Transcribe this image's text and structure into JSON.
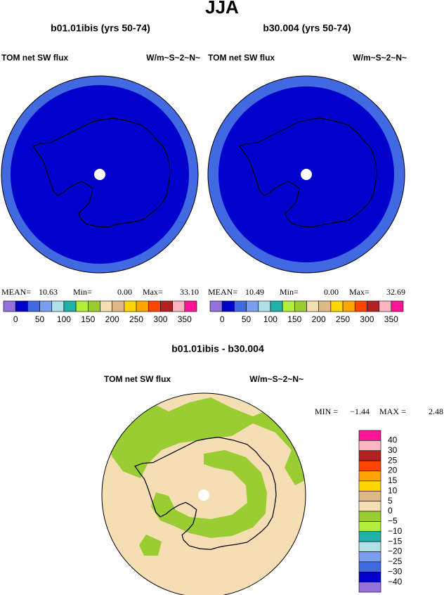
{
  "title": "JJA",
  "panels": [
    {
      "title": "b01.01ibis (yrs 50-74)",
      "left_label": "TOM net SW flux",
      "right_label": "W/m~S~2~N~",
      "stats": {
        "mean_label": "MEAN=",
        "mean": "10.63",
        "min_label": "Min=",
        "min": "0.00",
        "max_label": "Max=",
        "max": "33.10"
      }
    },
    {
      "title": "b30.004 (yrs 50-74)",
      "left_label": "TOM net SW flux",
      "right_label": "W/m~S~2~N~",
      "stats": {
        "mean_label": "MEAN=",
        "mean": "10.49",
        "min_label": "Min=",
        "min": "0.00",
        "max_label": "Max=",
        "max": "32.69"
      }
    }
  ],
  "colorbar": {
    "colors": [
      "#9370db",
      "#0000cd",
      "#4169e1",
      "#7b9ef0",
      "#b0e0e6",
      "#20b2aa",
      "#b3ee3a",
      "#9acd32",
      "#f5deb3",
      "#deb887",
      "#ffd700",
      "#ffa500",
      "#ff4500",
      "#b22222",
      "#ffb6c1",
      "#ff1493"
    ],
    "labels": [
      "0",
      "50",
      "100",
      "150",
      "200",
      "250",
      "300",
      "350"
    ]
  },
  "difference": {
    "title": "b01.01ibis - b30.004",
    "left_label": "TOM net SW flux",
    "right_label": "W/m~S~2~N~",
    "stats": {
      "min_label": "MIN =",
      "min": "−1.44",
      "max_label": "MAX =",
      "max": "2.48"
    },
    "colorbar": {
      "colors": [
        "#ff1493",
        "#ffb6c1",
        "#b22222",
        "#ff4500",
        "#ffa500",
        "#ffd700",
        "#deb887",
        "#f5deb3",
        "#9acd32",
        "#b3ee3a",
        "#20b2aa",
        "#b0e0e6",
        "#7b9ef0",
        "#4169e1",
        "#0000cd",
        "#9370db"
      ],
      "labels": [
        "40",
        "30",
        "25",
        "20",
        "15",
        "10",
        "5",
        "0",
        "−5",
        "−10",
        "−15",
        "−20",
        "−25",
        "−30",
        "−40"
      ]
    }
  }
}
